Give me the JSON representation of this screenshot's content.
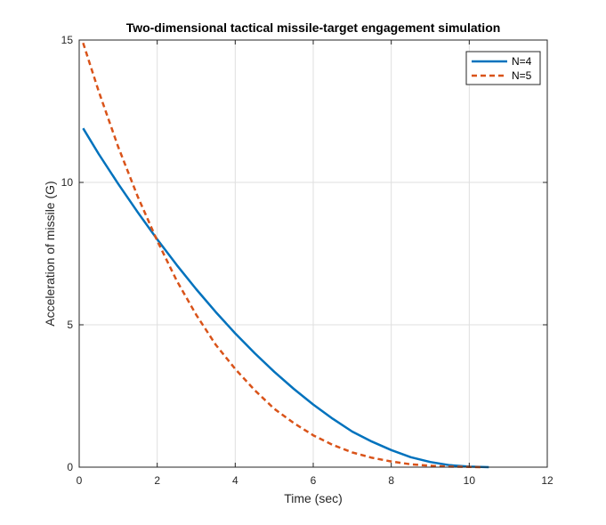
{
  "chart_data": {
    "type": "line",
    "title": "Two-dimensional tactical missile-target engagement simulation",
    "xlabel": "Time (sec)",
    "ylabel": "Acceleration of missile (G)",
    "xlim": [
      0,
      12
    ],
    "ylim": [
      0,
      15
    ],
    "xticks": [
      "0",
      "2",
      "4",
      "6",
      "8",
      "10",
      "12"
    ],
    "yticks": [
      "0",
      "5",
      "10",
      "15"
    ],
    "grid": true,
    "legend_position": "top-right",
    "series": [
      {
        "name": "N=4",
        "color": "#0072BD",
        "style": "solid",
        "x": [
          0.1,
          0.5,
          1,
          1.5,
          2,
          2.5,
          3,
          3.5,
          4,
          4.5,
          5,
          5.5,
          6,
          6.5,
          7,
          7.5,
          8,
          8.5,
          9,
          9.5,
          10,
          10.5
        ],
        "y": [
          11.9,
          11.0,
          9.95,
          8.95,
          8.0,
          7.1,
          6.25,
          5.45,
          4.7,
          4.0,
          3.35,
          2.75,
          2.2,
          1.7,
          1.25,
          0.9,
          0.6,
          0.35,
          0.18,
          0.07,
          0.02,
          0.0
        ]
      },
      {
        "name": "N=5",
        "color": "#D95319",
        "style": "dashed",
        "x": [
          0.1,
          0.5,
          1,
          1.5,
          2,
          2.5,
          3,
          3.5,
          4,
          4.5,
          5,
          5.5,
          6,
          6.5,
          7,
          7.5,
          8,
          8.5,
          9,
          9.5,
          10,
          10.3
        ],
        "y": [
          14.9,
          13.2,
          11.25,
          9.5,
          7.95,
          6.55,
          5.35,
          4.3,
          3.45,
          2.7,
          2.05,
          1.55,
          1.12,
          0.78,
          0.52,
          0.33,
          0.2,
          0.1,
          0.05,
          0.02,
          0.01,
          0.0
        ]
      }
    ]
  }
}
